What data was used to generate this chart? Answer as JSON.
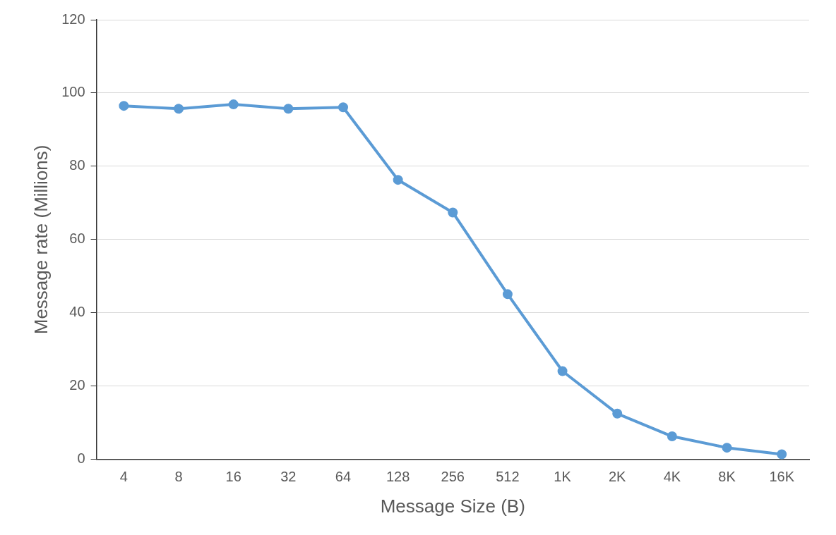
{
  "chart_data": {
    "type": "line",
    "xlabel": "Message Size (B)",
    "ylabel": "Message rate (Millions)",
    "categories": [
      "4",
      "8",
      "16",
      "32",
      "64",
      "128",
      "256",
      "512",
      "1K",
      "2K",
      "4K",
      "8K",
      "16K"
    ],
    "series": [
      {
        "color": "#5b9bd5",
        "values": [
          96.5,
          95.7,
          96.9,
          95.7,
          96.1,
          76.3,
          67.4,
          45.1,
          24.1,
          12.5,
          6.3,
          3.2,
          1.4
        ]
      }
    ],
    "ylim": [
      0,
      120
    ],
    "yticks": [
      0,
      20,
      40,
      60,
      80,
      100,
      120
    ],
    "grid": "y",
    "legend": false,
    "marker": "circle",
    "line_style": "solid"
  }
}
